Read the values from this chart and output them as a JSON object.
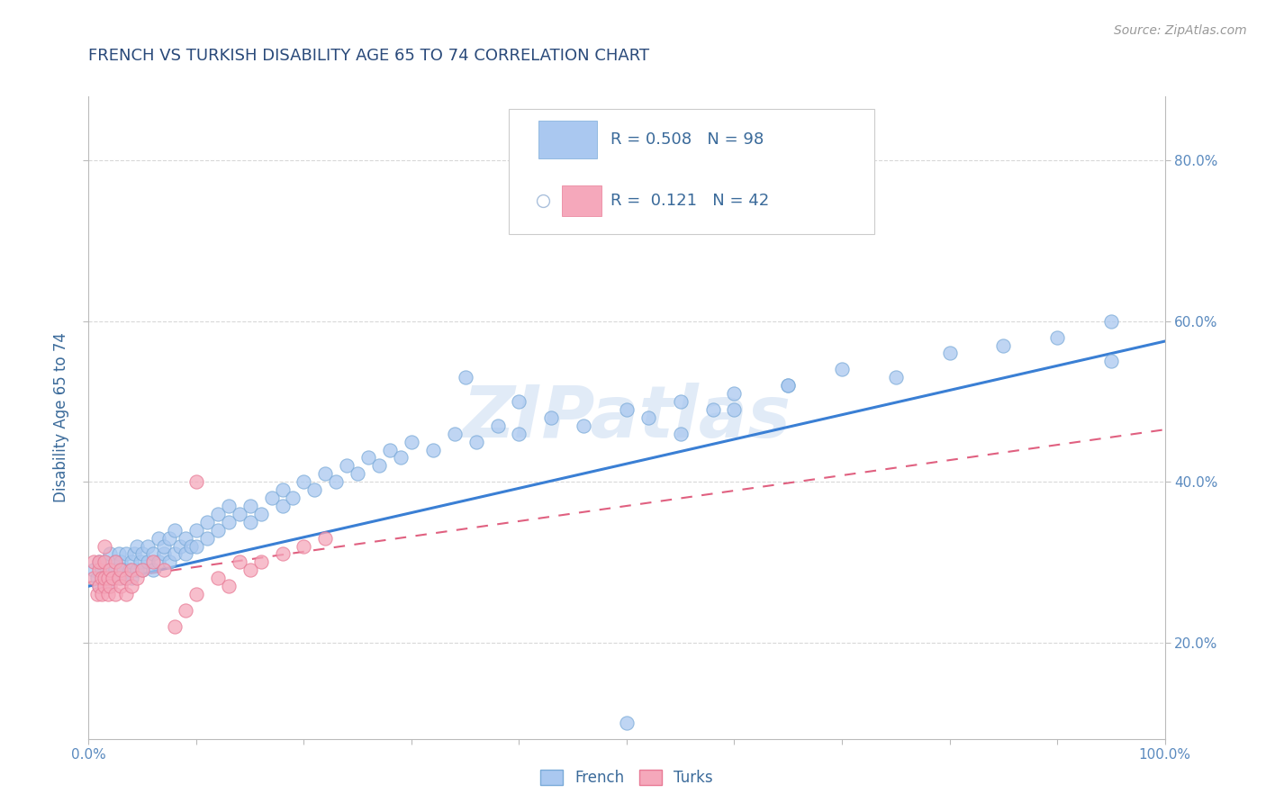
{
  "title": "FRENCH VS TURKISH DISABILITY AGE 65 TO 74 CORRELATION CHART",
  "source": "Source: ZipAtlas.com",
  "ylabel": "Disability Age 65 to 74",
  "xlim": [
    0.0,
    1.0
  ],
  "ylim": [
    0.08,
    0.88
  ],
  "ytick_labels": [
    "20.0%",
    "40.0%",
    "60.0%",
    "80.0%"
  ],
  "ytick_values": [
    0.2,
    0.4,
    0.6,
    0.8
  ],
  "french_R": 0.508,
  "french_N": 98,
  "turks_R": 0.121,
  "turks_N": 42,
  "french_color": "#aac8f0",
  "turks_color": "#f5a8bb",
  "french_edge_color": "#7aaad8",
  "turks_edge_color": "#e87a95",
  "french_line_color": "#3a7fd4",
  "turks_line_color": "#e06080",
  "title_color": "#2a4a7a",
  "axis_label_color": "#3a6a9a",
  "tick_color": "#5a8abf",
  "grid_color": "#d8d8d8",
  "legend_text_color": "#3a6a9a",
  "watermark": "ZIPatlas",
  "french_line_start_y": 0.27,
  "french_line_end_y": 0.575,
  "turks_line_start_y": 0.275,
  "turks_line_end_y": 0.465,
  "french_x": [
    0.005,
    0.008,
    0.01,
    0.01,
    0.012,
    0.015,
    0.015,
    0.018,
    0.02,
    0.02,
    0.022,
    0.025,
    0.025,
    0.028,
    0.03,
    0.03,
    0.032,
    0.035,
    0.035,
    0.038,
    0.04,
    0.04,
    0.042,
    0.045,
    0.045,
    0.048,
    0.05,
    0.05,
    0.055,
    0.055,
    0.06,
    0.06,
    0.065,
    0.065,
    0.07,
    0.07,
    0.075,
    0.075,
    0.08,
    0.08,
    0.085,
    0.09,
    0.09,
    0.095,
    0.1,
    0.1,
    0.11,
    0.11,
    0.12,
    0.12,
    0.13,
    0.13,
    0.14,
    0.15,
    0.15,
    0.16,
    0.17,
    0.18,
    0.18,
    0.19,
    0.2,
    0.21,
    0.22,
    0.23,
    0.24,
    0.25,
    0.26,
    0.27,
    0.28,
    0.29,
    0.3,
    0.32,
    0.34,
    0.36,
    0.38,
    0.4,
    0.43,
    0.46,
    0.5,
    0.52,
    0.55,
    0.58,
    0.6,
    0.65,
    0.7,
    0.75,
    0.8,
    0.85,
    0.9,
    0.95,
    0.35,
    0.4,
    0.5,
    0.55,
    0.6,
    0.65,
    0.5,
    0.95
  ],
  "french_y": [
    0.29,
    0.28,
    0.3,
    0.27,
    0.29,
    0.28,
    0.3,
    0.27,
    0.29,
    0.31,
    0.28,
    0.3,
    0.29,
    0.31,
    0.28,
    0.3,
    0.29,
    0.28,
    0.31,
    0.29,
    0.3,
    0.28,
    0.31,
    0.29,
    0.32,
    0.3,
    0.29,
    0.31,
    0.3,
    0.32,
    0.29,
    0.31,
    0.3,
    0.33,
    0.31,
    0.32,
    0.3,
    0.33,
    0.31,
    0.34,
    0.32,
    0.31,
    0.33,
    0.32,
    0.34,
    0.32,
    0.33,
    0.35,
    0.34,
    0.36,
    0.35,
    0.37,
    0.36,
    0.35,
    0.37,
    0.36,
    0.38,
    0.37,
    0.39,
    0.38,
    0.4,
    0.39,
    0.41,
    0.4,
    0.42,
    0.41,
    0.43,
    0.42,
    0.44,
    0.43,
    0.45,
    0.44,
    0.46,
    0.45,
    0.47,
    0.46,
    0.48,
    0.47,
    0.49,
    0.48,
    0.5,
    0.49,
    0.51,
    0.52,
    0.54,
    0.53,
    0.56,
    0.57,
    0.58,
    0.6,
    0.53,
    0.5,
    0.72,
    0.46,
    0.49,
    0.52,
    0.1,
    0.55
  ],
  "turks_x": [
    0.005,
    0.005,
    0.008,
    0.01,
    0.01,
    0.01,
    0.012,
    0.012,
    0.015,
    0.015,
    0.015,
    0.015,
    0.018,
    0.018,
    0.02,
    0.02,
    0.022,
    0.025,
    0.025,
    0.028,
    0.03,
    0.03,
    0.035,
    0.035,
    0.04,
    0.04,
    0.045,
    0.05,
    0.06,
    0.07,
    0.08,
    0.09,
    0.1,
    0.12,
    0.13,
    0.14,
    0.15,
    0.16,
    0.18,
    0.2,
    0.22,
    0.1
  ],
  "turks_y": [
    0.28,
    0.3,
    0.26,
    0.27,
    0.29,
    0.3,
    0.26,
    0.28,
    0.27,
    0.28,
    0.3,
    0.32,
    0.26,
    0.28,
    0.27,
    0.29,
    0.28,
    0.26,
    0.3,
    0.28,
    0.27,
    0.29,
    0.26,
    0.28,
    0.27,
    0.29,
    0.28,
    0.29,
    0.3,
    0.29,
    0.22,
    0.24,
    0.26,
    0.28,
    0.27,
    0.3,
    0.29,
    0.3,
    0.31,
    0.32,
    0.33,
    0.4
  ]
}
